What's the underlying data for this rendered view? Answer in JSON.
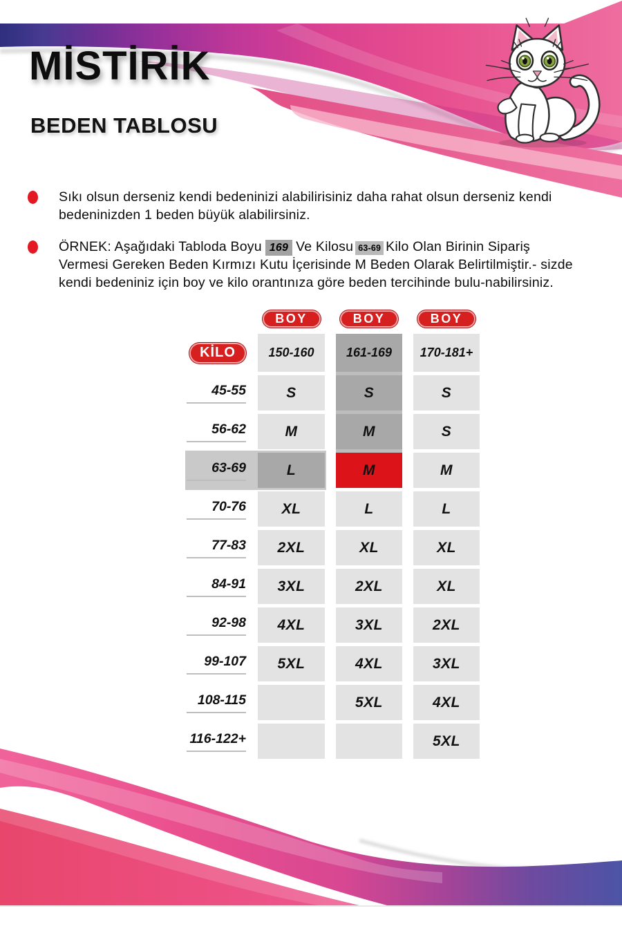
{
  "header": {
    "brand": "MİSTİRİK",
    "subtitle": "BEDEN TABLOSU",
    "mascot_icon": "white-cat"
  },
  "notes": {
    "note1": "Sıkı olsun derseniz kendi bedeninizi alabilirisiniz daha rahat olsun derseniz kendi bedeninizden 1 beden büyük alabilirsiniz."
  },
  "example": {
    "prefix": "ÖRNEK: Aşağıdaki Tabloda Boyu",
    "boy_value": "169",
    "mid": "Ve Kilosu",
    "kilo_value": "63-69",
    "suffix": "Kilo Olan Birinin Sipariş Vermesi Gereken Beden Kırmızı Kutu İçerisinde M Beden Olarak Belirtilmiştir.- sizde kendi bedeniniz için boy ve kilo orantınıza göre beden tercihinde bulu-nabilirsiniz."
  },
  "table": {
    "boy_header": "BOY",
    "kilo_header": "KİLO",
    "boy_ranges": [
      "150-160",
      "161-169",
      "170-181+"
    ],
    "rows": [
      {
        "kilo": "45-55",
        "sizes": [
          "S",
          "S",
          "S"
        ]
      },
      {
        "kilo": "56-62",
        "sizes": [
          "M",
          "M",
          "S"
        ]
      },
      {
        "kilo": "63-69",
        "sizes": [
          "L",
          "M",
          "M"
        ]
      },
      {
        "kilo": "70-76",
        "sizes": [
          "XL",
          "L",
          "L"
        ]
      },
      {
        "kilo": "77-83",
        "sizes": [
          "2XL",
          "XL",
          "XL"
        ]
      },
      {
        "kilo": "84-91",
        "sizes": [
          "3XL",
          "2XL",
          "XL"
        ]
      },
      {
        "kilo": "92-98",
        "sizes": [
          "4XL",
          "3XL",
          "2XL"
        ]
      },
      {
        "kilo": "99-107",
        "sizes": [
          "5XL",
          "4XL",
          "3XL"
        ]
      },
      {
        "kilo": "108-115",
        "sizes": [
          "",
          "5XL",
          "4XL"
        ]
      },
      {
        "kilo": "116-122+",
        "sizes": [
          "",
          "",
          "5XL"
        ]
      }
    ],
    "example_highlight": {
      "boy": "161-169",
      "kilo": "63-69",
      "size": "M"
    }
  },
  "colors": {
    "accent_red": "#d6201f",
    "highlight_cell_red": "#dc141a",
    "bullet_red": "#e31a24",
    "cell_light_gray": "#e3e3e3",
    "cell_dark_gray": "#a8a8a8",
    "column_band_gray": "#bdbdbd",
    "row_band_gray": "#c9c9c9",
    "badge_dark_gray": "#a2a2a2",
    "badge_light_gray": "#b9b9b9",
    "header_pink": "#e74f8e",
    "header_purple": "#6c3094",
    "header_indigo": "#2e2f7d"
  }
}
